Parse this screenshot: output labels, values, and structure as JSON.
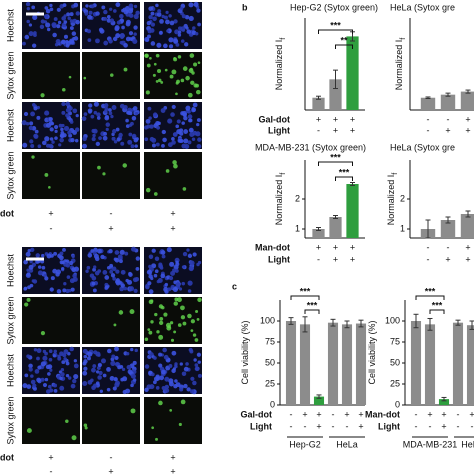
{
  "panel_labels": [
    "b",
    "c"
  ],
  "micrograph_blocks": [
    {
      "rows": [
        "Hoechst",
        "Sytox green",
        "Hoechst",
        "Sytox green"
      ],
      "conditions": [
        {
          "label": "dot",
          "marks": [
            "+",
            "-",
            "+"
          ]
        },
        {
          "marks": [
            "-",
            "+",
            "+"
          ]
        }
      ]
    },
    {
      "rows": [
        "Hoechst",
        "Sytox green",
        "Hoechst",
        "Sytox green"
      ],
      "conditions": [
        {
          "label": "dot",
          "marks": [
            "+",
            "-",
            "+"
          ]
        },
        {
          "marks": [
            "-",
            "+",
            "+"
          ]
        }
      ]
    }
  ],
  "chart_data": [
    {
      "type": "bar",
      "title": "Hep-G2 (Sytox green)",
      "y_label": "Normalized I",
      "y_label_sub": "f",
      "values": [
        0.8,
        2.0,
        4.8
      ],
      "errors": [
        0.1,
        0.6,
        0.3
      ],
      "colors": [
        "#8c8c8c",
        "#8c8c8c",
        "#2e9e3e"
      ],
      "ylim": [
        0,
        6
      ],
      "significance": [
        "***",
        "**"
      ],
      "conditions": [
        {
          "label": "Gal-dot",
          "marks": [
            "+",
            "+",
            "+"
          ]
        },
        {
          "label": "Light",
          "marks": [
            "-",
            "+",
            "+"
          ]
        }
      ]
    },
    {
      "type": "bar",
      "title": "HeLa (Sytox gre",
      "y_label": "Normalized I",
      "y_label_sub": "f",
      "values": [
        0.8,
        1.0,
        1.2
      ],
      "errors": [
        0.05,
        0.1,
        0.1
      ],
      "colors": [
        "#8c8c8c",
        "#8c8c8c",
        "#8c8c8c"
      ],
      "ylim": [
        0,
        6
      ],
      "conditions": [
        {
          "marks": [
            "-",
            "-",
            "+"
          ]
        },
        {
          "marks": [
            "-",
            "+",
            "+"
          ]
        }
      ]
    },
    {
      "type": "bar",
      "title": "MDA-MB-231 (Sytox green)",
      "y_label": "Normalized I",
      "y_label_sub": "f",
      "values": [
        1.0,
        1.4,
        2.5
      ],
      "errors": [
        0.05,
        0.05,
        0.05
      ],
      "colors": [
        "#8c8c8c",
        "#8c8c8c",
        "#2e9e3e"
      ],
      "ylim": [
        0.7,
        3.3
      ],
      "yticks": [
        1,
        2
      ],
      "significance": [
        "***",
        "***"
      ],
      "conditions": [
        {
          "label": "Man-dot",
          "marks": [
            "+",
            "+",
            "+"
          ]
        },
        {
          "label": "Light",
          "marks": [
            "-",
            "+",
            "+"
          ]
        }
      ]
    },
    {
      "type": "bar",
      "title": "HeLa (Sytox gre",
      "y_label": "Normalized I",
      "y_label_sub": "f",
      "values": [
        1.0,
        1.3,
        1.5
      ],
      "errors": [
        0.3,
        0.1,
        0.1
      ],
      "colors": [
        "#8c8c8c",
        "#8c8c8c",
        "#8c8c8c"
      ],
      "ylim": [
        0.7,
        3.3
      ],
      "yticks": [
        1,
        2
      ],
      "conditions": [
        {
          "marks": [
            "-",
            "-",
            "+"
          ]
        },
        {
          "marks": [
            "-",
            "+",
            "+"
          ]
        }
      ]
    },
    {
      "type": "bar",
      "y_label": "Cell viability (%)",
      "values": [
        100,
        96,
        10,
        98,
        96,
        97
      ],
      "errors": [
        4,
        9,
        2,
        4,
        4,
        4
      ],
      "colors": [
        "#8c8c8c",
        "#8c8c8c",
        "#2e9e3e",
        "#8c8c8c",
        "#8c8c8c",
        "#8c8c8c"
      ],
      "ylim": [
        0,
        125
      ],
      "yticks": [
        0,
        25,
        50,
        75,
        100
      ],
      "significance": [
        "***",
        "***"
      ],
      "conditions": [
        {
          "label": "Gal-dot",
          "marks": [
            "-",
            "+",
            "+",
            "-",
            "+",
            "+"
          ]
        },
        {
          "label": "Light",
          "marks": [
            "-",
            "-",
            "+",
            "-",
            "-",
            "+"
          ]
        }
      ],
      "groups": [
        "Hep-G2",
        "HeLa"
      ]
    },
    {
      "type": "bar",
      "y_label": "Cell viability (%)",
      "values": [
        100,
        96,
        7,
        98,
        95,
        97
      ],
      "errors": [
        8,
        7,
        2,
        3,
        5,
        4
      ],
      "colors": [
        "#8c8c8c",
        "#8c8c8c",
        "#2e9e3e",
        "#8c8c8c",
        "#8c8c8c",
        "#8c8c8c"
      ],
      "ylim": [
        0,
        125
      ],
      "yticks": [
        0,
        25,
        50,
        75,
        100
      ],
      "significance": [
        "***",
        "***"
      ],
      "conditions": [
        {
          "label": "Man-dot",
          "marks": [
            "-",
            "+",
            "+",
            "-",
            "+",
            "+"
          ]
        },
        {
          "label": "Light",
          "marks": [
            "-",
            "-",
            "+",
            "-",
            "-",
            "+"
          ]
        }
      ],
      "groups": [
        "MDA-MB-231",
        "HeLa"
      ]
    }
  ]
}
